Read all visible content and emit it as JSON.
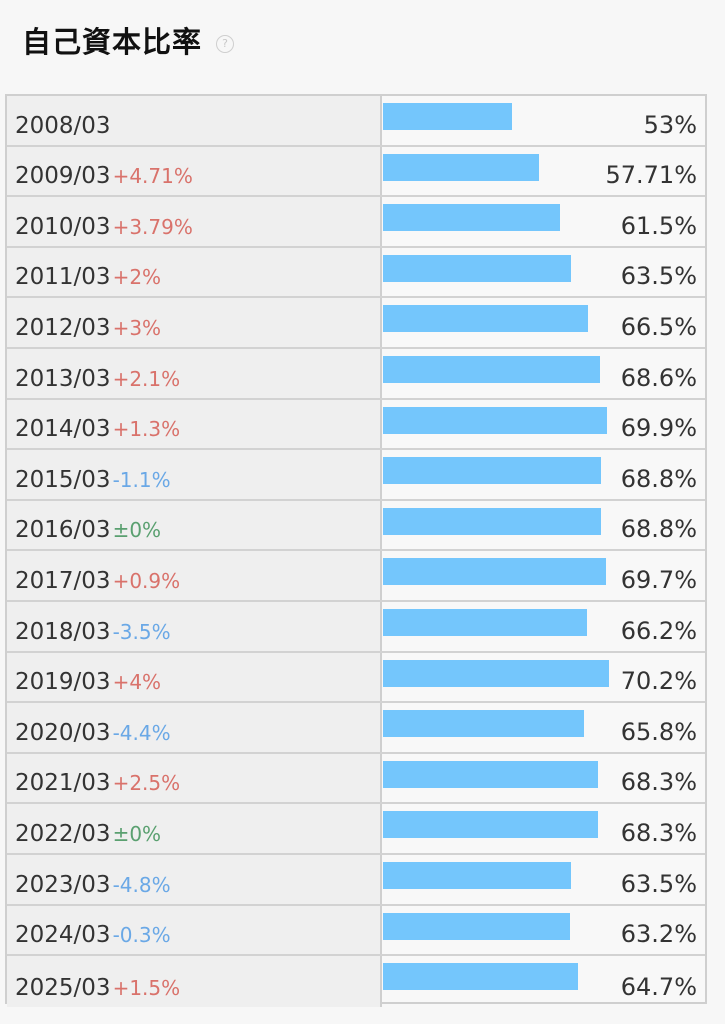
{
  "header": {
    "title": "自己資本比率",
    "help_glyph": "?"
  },
  "colors": {
    "bar": "#74c6fc",
    "increase": "#d9726b",
    "decrease": "#6aa8e6",
    "unchanged": "#5aa070"
  },
  "chart_data": {
    "type": "bar",
    "orientation": "horizontal",
    "title": "自己資本比率",
    "categories": [
      "2008/03",
      "2009/03",
      "2010/03",
      "2011/03",
      "2012/03",
      "2013/03",
      "2014/03",
      "2015/03",
      "2016/03",
      "2017/03",
      "2018/03",
      "2019/03",
      "2020/03",
      "2021/03",
      "2022/03",
      "2023/03",
      "2024/03",
      "2025/03"
    ],
    "values": [
      53,
      57.71,
      61.5,
      63.5,
      66.5,
      68.6,
      69.9,
      68.8,
      68.8,
      69.7,
      66.2,
      70.2,
      65.8,
      68.3,
      68.3,
      63.5,
      63.2,
      64.7
    ],
    "value_labels": [
      "53%",
      "57.71%",
      "61.5%",
      "63.5%",
      "66.5%",
      "68.6%",
      "69.9%",
      "68.8%",
      "68.8%",
      "69.7%",
      "66.2%",
      "70.2%",
      "65.8%",
      "68.3%",
      "68.3%",
      "63.5%",
      "63.2%",
      "64.7%"
    ],
    "changes": [
      "",
      "+4.71%",
      "+3.79%",
      "+2%",
      "+3%",
      "+2.1%",
      "+1.3%",
      "-1.1%",
      "±0%",
      "+0.9%",
      "-3.5%",
      "+4%",
      "-4.4%",
      "+2.5%",
      "±0%",
      "-4.8%",
      "-0.3%",
      "+1.5%"
    ],
    "xlim": [
      0,
      70.2
    ],
    "grid": false,
    "legend": "none"
  }
}
